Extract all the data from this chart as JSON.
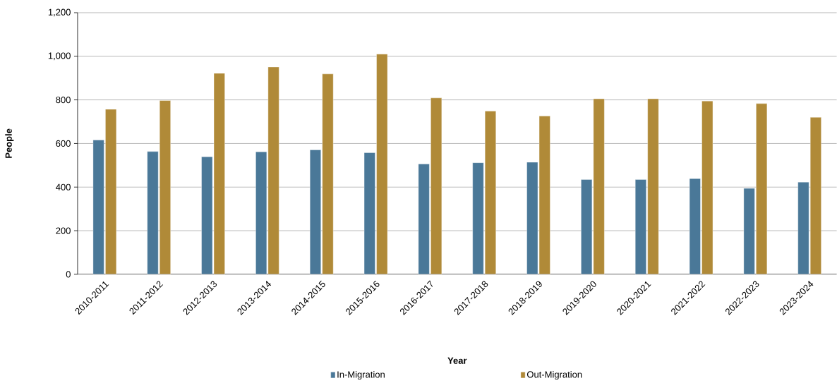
{
  "chart_data": {
    "type": "bar",
    "xlabel": "Year",
    "ylabel": "People",
    "categories": [
      "2010-2011",
      "2011-2012",
      "2012-2013",
      "2013-2014",
      "2014-2015",
      "2015-2016",
      "2016-2017",
      "2017-2018",
      "2018-2019",
      "2019-2020",
      "2020-2021",
      "2021-2022",
      "2022-2023",
      "2023-2024"
    ],
    "series": [
      {
        "name": "In-Migration",
        "color": "#4a7898",
        "values": [
          616,
          563,
          539,
          562,
          571,
          558,
          506,
          512,
          514,
          435,
          435,
          439,
          394,
          423
        ]
      },
      {
        "name": "Out-Migration",
        "color": "#b08a38",
        "values": [
          757,
          797,
          922,
          951,
          919,
          1010,
          809,
          749,
          726,
          805,
          805,
          795,
          783,
          720
        ]
      }
    ],
    "ylim": [
      0,
      1200
    ],
    "yticks": [
      0,
      200,
      400,
      600,
      800,
      {
        "value": 1000,
        "label": "1,000"
      },
      {
        "value": 1200,
        "label": "1,200"
      }
    ],
    "grid": "y",
    "legend": "bottom"
  }
}
